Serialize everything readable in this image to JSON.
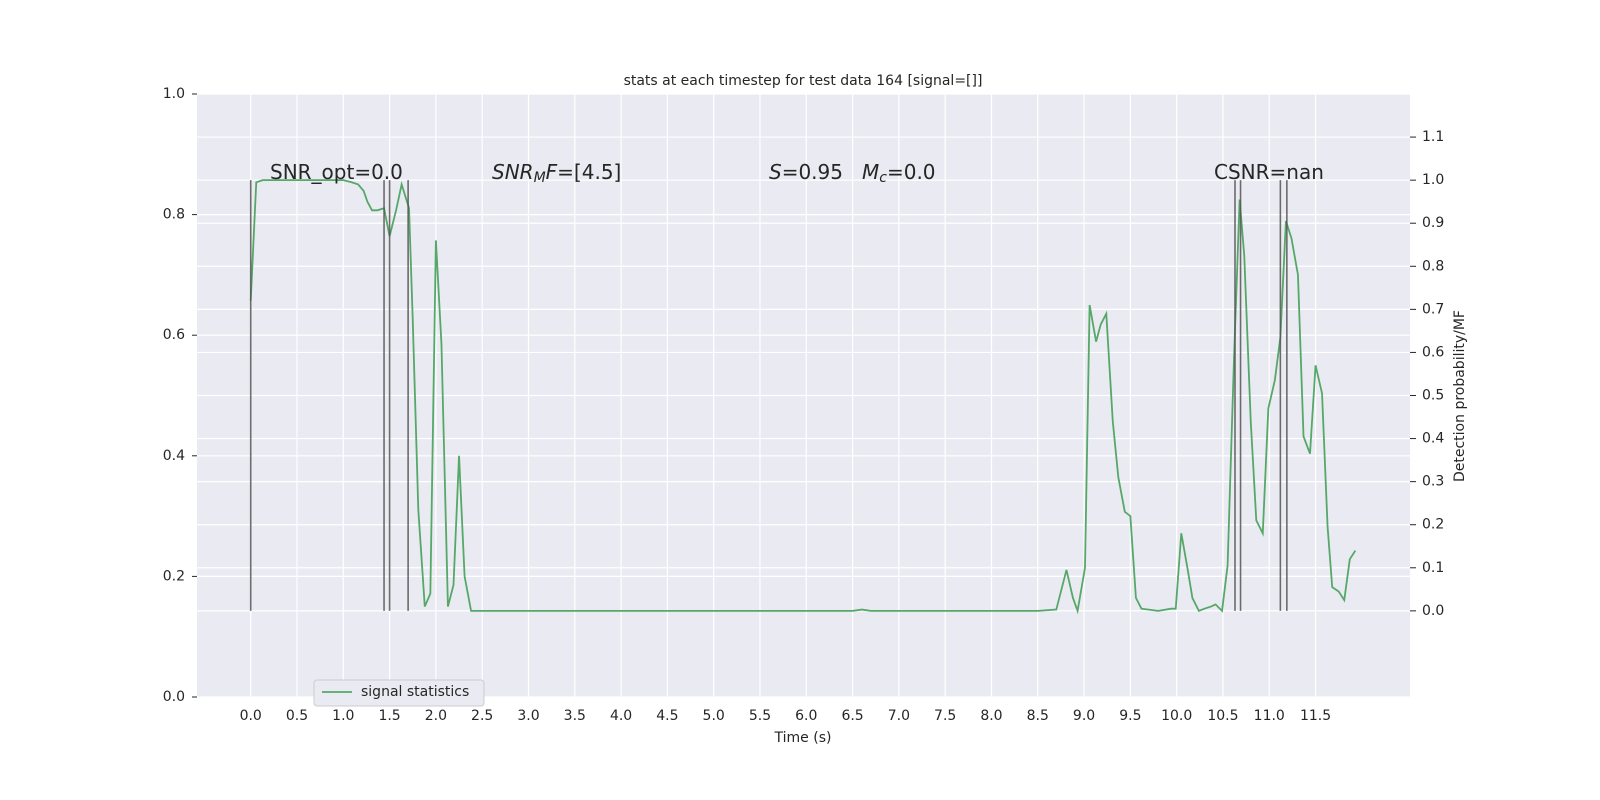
{
  "chart_data": {
    "type": "line",
    "title": "stats at each timestep for test data 164 [signal=[]]",
    "xlabel": "Time (s)",
    "y2label": "Detection probability/MF",
    "xlim": [
      -0.58,
      12.52
    ],
    "ylim": [
      0,
      1
    ],
    "y2lim": [
      -0.2,
      1.2
    ],
    "xticks": [
      {
        "value": 0,
        "label": "0.0"
      },
      0.5,
      {
        "value": 1,
        "label": "1.0"
      },
      1.5,
      {
        "value": 2,
        "label": "2.0"
      },
      2.5,
      {
        "value": 3,
        "label": "3.0"
      },
      3.5,
      {
        "value": 4,
        "label": "4.0"
      },
      4.5,
      {
        "value": 5,
        "label": "5.0"
      },
      5.5,
      {
        "value": 6,
        "label": "6.0"
      },
      6.5,
      {
        "value": 7,
        "label": "7.0"
      },
      7.5,
      {
        "value": 8,
        "label": "8.0"
      },
      8.5,
      {
        "value": 9,
        "label": "9.0"
      },
      9.5,
      {
        "value": 10,
        "label": "10.0"
      },
      10.5,
      {
        "value": 11,
        "label": "11.0"
      },
      11.5
    ],
    "yticks": [
      {
        "value": 0,
        "label": "0.0"
      },
      0.2,
      0.4,
      0.6,
      0.8,
      {
        "value": 1,
        "label": "1.0"
      }
    ],
    "y2ticks": [
      {
        "value": 0,
        "label": "0.0"
      },
      0.1,
      0.2,
      0.3,
      0.4,
      0.5,
      0.6,
      0.7,
      0.8,
      0.9,
      {
        "value": 1,
        "label": "1.0"
      },
      1.1
    ],
    "grid": true,
    "legend": "lower left",
    "x": [
      0,
      0.06,
      0.13,
      0.5,
      1.0,
      1.09,
      1.16,
      1.22,
      1.26,
      1.31,
      1.37,
      1.44,
      1.5,
      1.57,
      1.63,
      1.71,
      1.75,
      1.81,
      1.88,
      1.94,
      2.0,
      2.06,
      2.13,
      2.19,
      2.25,
      2.31,
      2.38,
      2.5,
      6.5,
      6.6,
      6.7,
      8.5,
      8.7,
      8.81,
      8.88,
      8.93,
      9.01,
      9.06,
      9.13,
      9.18,
      9.24,
      9.31,
      9.37,
      9.44,
      9.5,
      9.56,
      9.62,
      9.8,
      9.94,
      9.99,
      10.05,
      10.12,
      10.17,
      10.24,
      10.3,
      10.37,
      10.42,
      10.49,
      10.55,
      10.62,
      10.68,
      10.73,
      10.8,
      10.86,
      10.93,
      10.99,
      11.06,
      11.12,
      11.18,
      11.24,
      11.31,
      11.37,
      11.44,
      11.5,
      11.57,
      11.63,
      11.68,
      11.75,
      11.81,
      11.87,
      11.93
    ],
    "series": [
      {
        "name": "signal statistics",
        "color": "#55a868",
        "axis": "y2",
        "values": [
          0.72,
          0.995,
          1.0,
          1.0,
          1.0,
          0.995,
          0.99,
          0.975,
          0.95,
          0.93,
          0.93,
          0.935,
          0.87,
          0.93,
          0.99,
          0.935,
          0.675,
          0.235,
          0.01,
          0.04,
          0.86,
          0.62,
          0.01,
          0.06,
          0.36,
          0.08,
          0.0,
          0.0,
          0.0,
          0.003,
          0.0,
          0.0,
          0.003,
          0.095,
          0.03,
          0.0,
          0.1,
          0.71,
          0.625,
          0.665,
          0.69,
          0.44,
          0.31,
          0.23,
          0.22,
          0.03,
          0.005,
          0.0,
          0.005,
          0.005,
          0.18,
          0.095,
          0.03,
          0.0,
          0.005,
          0.01,
          0.015,
          0.0,
          0.105,
          0.59,
          0.955,
          0.825,
          0.44,
          0.21,
          0.18,
          0.47,
          0.535,
          0.635,
          0.905,
          0.865,
          0.78,
          0.405,
          0.365,
          0.57,
          0.505,
          0.195,
          0.055,
          0.045,
          0.025,
          0.12,
          0.14
        ]
      }
    ],
    "vlines": {
      "color": "#555555",
      "x": [
        0,
        1.44,
        1.5,
        1.7,
        10.63,
        10.69,
        11.12,
        11.19
      ]
    },
    "annotations": [
      {
        "segments": [
          {
            "text": "SNR_opt=0.0"
          }
        ]
      },
      {
        "segments": [
          {
            "text": "SNR",
            "style": "italic"
          },
          {
            "text": "M",
            "style": "italic-sub"
          },
          {
            "text": "F",
            "style": "italic"
          },
          {
            "text": "=[4.5]"
          }
        ]
      },
      {
        "segments": [
          {
            "text": "S",
            "style": "italic"
          },
          {
            "text": "=0.95"
          }
        ]
      },
      {
        "segments": [
          {
            "text": "M",
            "style": "italic"
          },
          {
            "text": "c",
            "style": "italic-sub"
          },
          {
            "text": "=0.0"
          }
        ]
      },
      {
        "segments": [
          {
            "text": "CSNR=nan"
          }
        ]
      }
    ]
  }
}
